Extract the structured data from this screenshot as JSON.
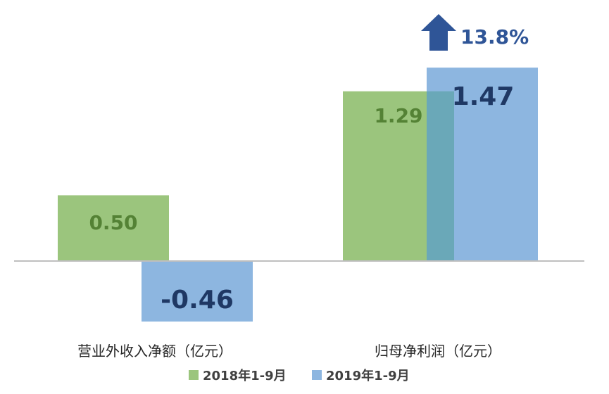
{
  "chart_data": {
    "type": "bar",
    "categories": [
      "营业外收入净额（亿元）",
      "归母净利润（亿元）"
    ],
    "series": [
      {
        "name": "2018年1-9月",
        "values": [
          0.5,
          1.29
        ],
        "labels": [
          "0.50",
          "1.29"
        ],
        "color": "#9bc57d",
        "label_color": "#548235"
      },
      {
        "name": "2019年1-9月",
        "values": [
          -0.46,
          1.47
        ],
        "labels": [
          "-0.46",
          "1.47"
        ],
        "color": "#8db6e0",
        "label_color": "#1f3864"
      }
    ],
    "annotation": {
      "text": "13.8%",
      "direction": "up",
      "color": "#2f5597"
    },
    "ylim": [
      -0.5,
      1.5
    ],
    "overlap_color": "#6aa8b8",
    "axis_color": "#bfbfbf",
    "grid": false,
    "legend_position": "bottom"
  }
}
